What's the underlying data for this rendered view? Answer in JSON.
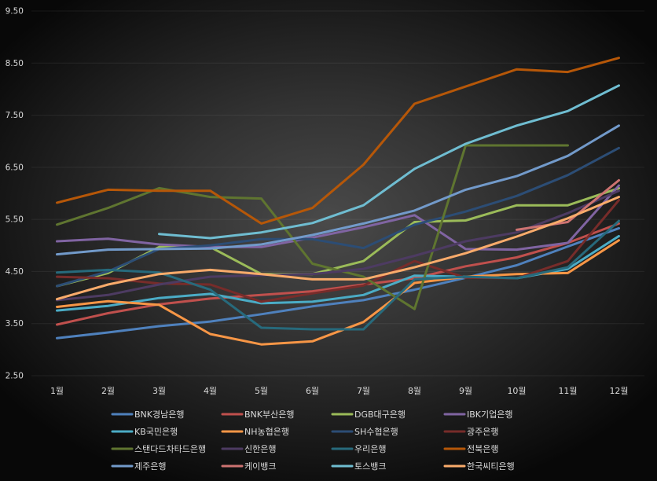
{
  "chart_data": {
    "type": "line",
    "categories": [
      "1월",
      "2월",
      "3월",
      "4월",
      "5월",
      "6월",
      "7월",
      "8월",
      "9월",
      "10월",
      "11월",
      "12월"
    ],
    "ylim": [
      2.5,
      9.5
    ],
    "y_tick_labels": [
      "9.50",
      "8.50",
      "7.50",
      "6.50",
      "5.50",
      "4.50",
      "3.50",
      "2.50"
    ],
    "grid": "horizontal",
    "legend": "bottom",
    "series": [
      {
        "name": "BNK경남은행",
        "color": "#4F81BD",
        "values": [
          3.22,
          3.33,
          3.45,
          3.54,
          3.68,
          3.83,
          3.95,
          4.15,
          4.38,
          4.62,
          4.98,
          5.33
        ]
      },
      {
        "name": "BNK부산은행",
        "color": "#C0504D",
        "values": [
          3.48,
          3.7,
          3.87,
          3.98,
          4.05,
          4.12,
          4.25,
          4.37,
          4.6,
          4.77,
          5.05,
          5.42
        ]
      },
      {
        "name": "DGB대구은행",
        "color": "#9BBB59",
        "values": [
          4.22,
          4.47,
          4.97,
          4.97,
          4.45,
          4.45,
          4.7,
          5.45,
          5.48,
          5.77,
          5.77,
          6.1
        ]
      },
      {
        "name": "IBK기업은행",
        "color": "#8064A2",
        "values": [
          5.08,
          5.13,
          5.02,
          4.97,
          4.97,
          5.15,
          5.35,
          5.58,
          4.93,
          4.92,
          5.05,
          6.15
        ]
      },
      {
        "name": "KB국민은행",
        "color": "#4BACC6",
        "values": [
          3.75,
          3.84,
          3.99,
          4.07,
          3.89,
          3.92,
          4.05,
          4.42,
          4.4,
          4.37,
          4.55,
          5.18
        ]
      },
      {
        "name": "NH농협은행",
        "color": "#F79646",
        "values": [
          3.82,
          3.93,
          3.86,
          3.3,
          3.1,
          3.16,
          3.53,
          4.28,
          4.4,
          4.45,
          4.47,
          5.1
        ]
      },
      {
        "name": "SH수협은행",
        "color": "#2C4D75",
        "values": [
          4.22,
          4.5,
          4.93,
          5.0,
          5.12,
          5.12,
          4.95,
          5.4,
          5.65,
          5.95,
          6.35,
          6.87
        ]
      },
      {
        "name": "광주은행",
        "color": "#772C2A",
        "values": [
          4.4,
          4.37,
          4.27,
          4.25,
          3.92,
          4.08,
          4.23,
          4.7,
          4.38,
          4.37,
          4.7,
          5.87
        ]
      },
      {
        "name": "스탠다드차타드은행",
        "color": "#5F7530",
        "values": [
          5.4,
          5.72,
          6.1,
          5.93,
          5.9,
          4.65,
          4.4,
          3.78,
          6.92,
          6.92,
          6.92,
          null
        ]
      },
      {
        "name": "신한은행",
        "color": "#4D3B62",
        "values": [
          3.95,
          4.05,
          4.25,
          4.4,
          4.43,
          4.45,
          4.55,
          4.8,
          5.08,
          5.25,
          5.62,
          6.05
        ]
      },
      {
        "name": "우리은행",
        "color": "#276A7C",
        "values": [
          4.48,
          4.53,
          4.48,
          4.15,
          3.42,
          3.39,
          3.39,
          4.35,
          4.4,
          4.37,
          4.58,
          5.47
        ]
      },
      {
        "name": "전북은행",
        "color": "#B65708",
        "values": [
          5.82,
          6.07,
          6.05,
          6.05,
          5.42,
          5.72,
          6.55,
          7.72,
          8.05,
          8.38,
          8.33,
          8.6
        ]
      },
      {
        "name": "제주은행",
        "color": "#729ACA",
        "values": [
          4.83,
          4.92,
          4.93,
          4.94,
          5.02,
          5.2,
          5.42,
          5.67,
          6.07,
          6.33,
          6.72,
          7.3
        ]
      },
      {
        "name": "케이뱅크",
        "color": "#CD7371",
        "values": [
          null,
          null,
          null,
          null,
          null,
          null,
          null,
          null,
          null,
          5.3,
          5.45,
          6.25
        ]
      },
      {
        "name": "토스뱅크",
        "color": "#6FBDD1",
        "values": [
          null,
          null,
          5.22,
          5.14,
          5.25,
          5.43,
          5.77,
          6.47,
          6.95,
          7.3,
          7.58,
          8.07
        ]
      },
      {
        "name": "한국씨티은행",
        "color": "#F9AB6B",
        "values": [
          3.97,
          4.25,
          4.45,
          4.53,
          4.45,
          4.35,
          4.35,
          4.58,
          4.85,
          5.17,
          5.52,
          5.93
        ]
      }
    ]
  }
}
